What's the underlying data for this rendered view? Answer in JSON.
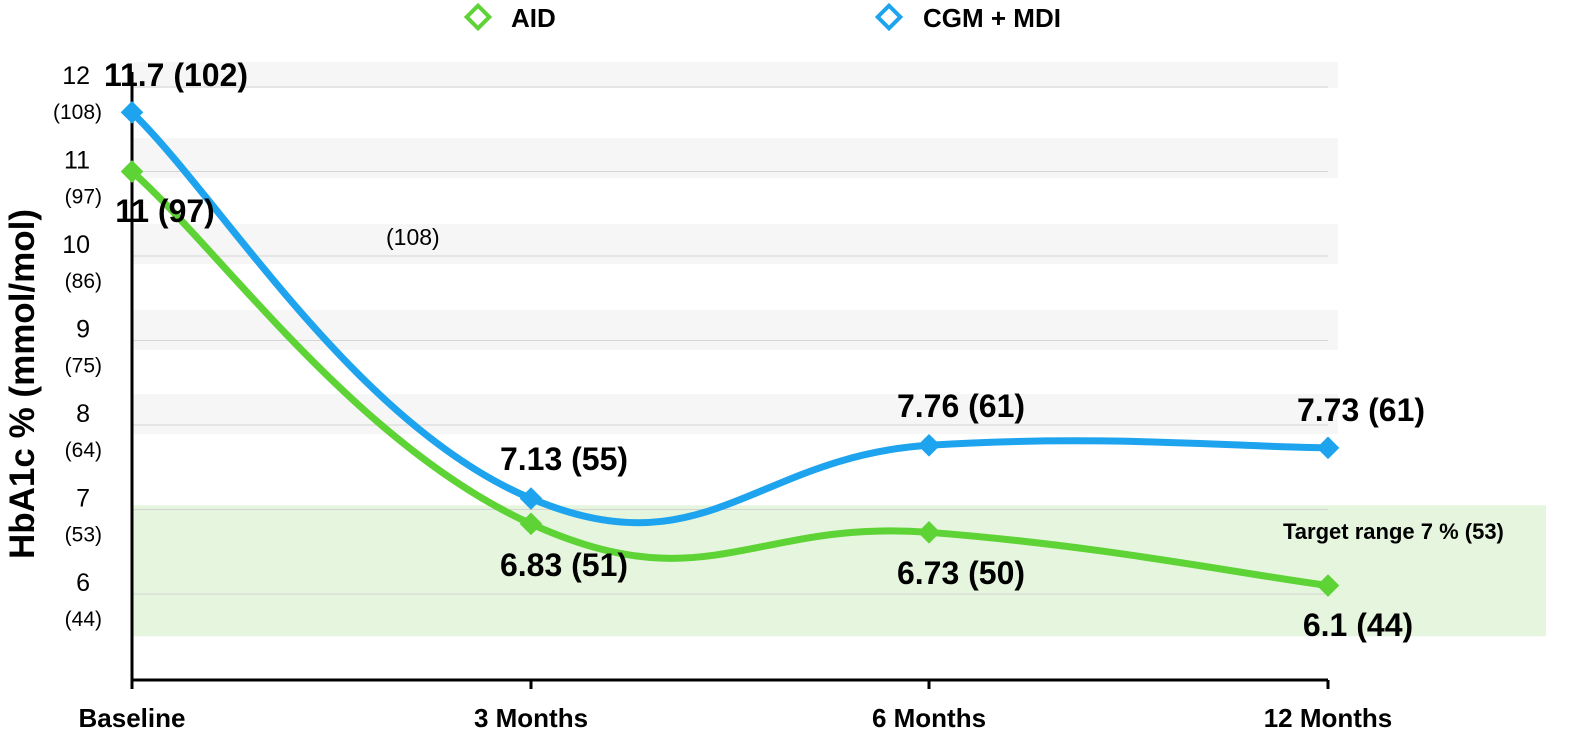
{
  "chart_data": {
    "type": "line",
    "ylabel": "HbA1c % (mmol/mol)",
    "categories": [
      "Baseline",
      "3 Months",
      "6 Months",
      "12 Months"
    ],
    "ylim": [
      5,
      12.5
    ],
    "yticks": [
      {
        "value": 12,
        "pct": "12",
        "mmol": "(108)"
      },
      {
        "value": 11,
        "pct": "11",
        "mmol": "(97)"
      },
      {
        "value": 10,
        "pct": "10",
        "mmol": "(86)"
      },
      {
        "value": 9,
        "pct": "9",
        "mmol": "(75)"
      },
      {
        "value": 8,
        "pct": "8",
        "mmol": "(64)"
      },
      {
        "value": 7,
        "pct": "7",
        "mmol": "(53)"
      },
      {
        "value": 6,
        "pct": "6",
        "mmol": "(44)"
      }
    ],
    "grid": true,
    "legend_position": "top",
    "series": [
      {
        "name": "AID",
        "color": "#5ed335",
        "values": [
          11,
          6.83,
          6.73,
          6.1
        ],
        "labels": [
          "11 (97)",
          "6.83 (51)",
          "6.73 (50)",
          "6.1 (44)"
        ]
      },
      {
        "name": "CGM + MDI",
        "color": "#1ea4ee",
        "values": [
          11.7,
          7.13,
          7.76,
          7.73
        ],
        "labels": [
          "11.7 (102)",
          "7.13 (55)",
          "7.76 (61)",
          "7.73 (61)"
        ]
      }
    ],
    "target_band": {
      "from": 5.5,
      "to": 7.05,
      "color": "#e6f5de",
      "label": "Target range 7 % (53)"
    },
    "stray_annotation": "(108)"
  }
}
